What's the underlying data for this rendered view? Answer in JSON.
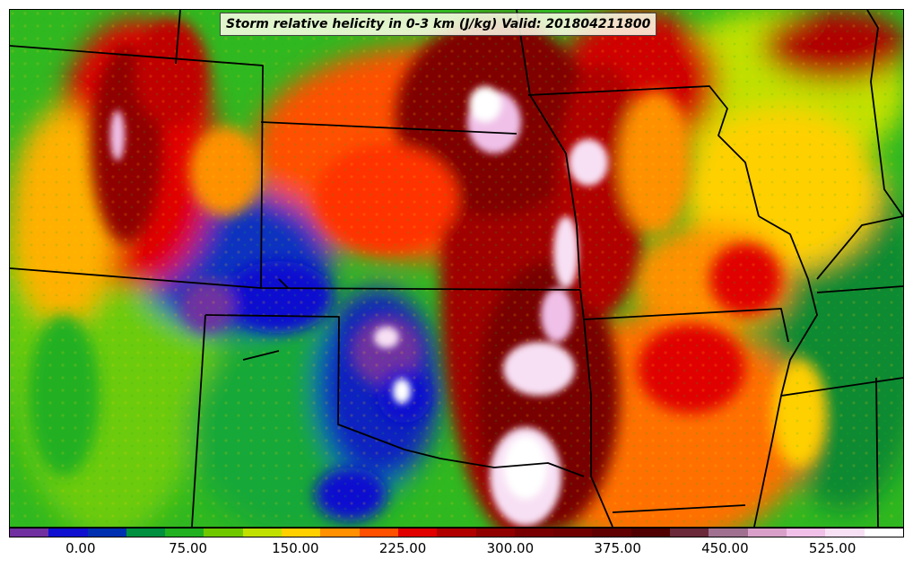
{
  "title": "Storm relative helicity in 0-3 km (J/kg) Valid: 201804211800",
  "colorbar": {
    "colors": [
      "#7030a0",
      "#1010d0",
      "#0030b0",
      "#009040",
      "#20b020",
      "#70c800",
      "#c0e000",
      "#ffd000",
      "#ff9000",
      "#ff5000",
      "#e00000",
      "#b00000",
      "#900000",
      "#780000",
      "#700000",
      "#600000",
      "#500000",
      "#6a2a3a",
      "#a07090",
      "#d8a0c8",
      "#f0c0e8",
      "#f8e0f4",
      "#ffffff"
    ],
    "ticks": [
      "0.00",
      "75.00",
      "150.00",
      "225.00",
      "300.00",
      "375.00",
      "450.00",
      "525.00"
    ],
    "tick_values": [
      0,
      75,
      150,
      225,
      300,
      375,
      450,
      525
    ],
    "min": -50,
    "max": 575
  }
}
